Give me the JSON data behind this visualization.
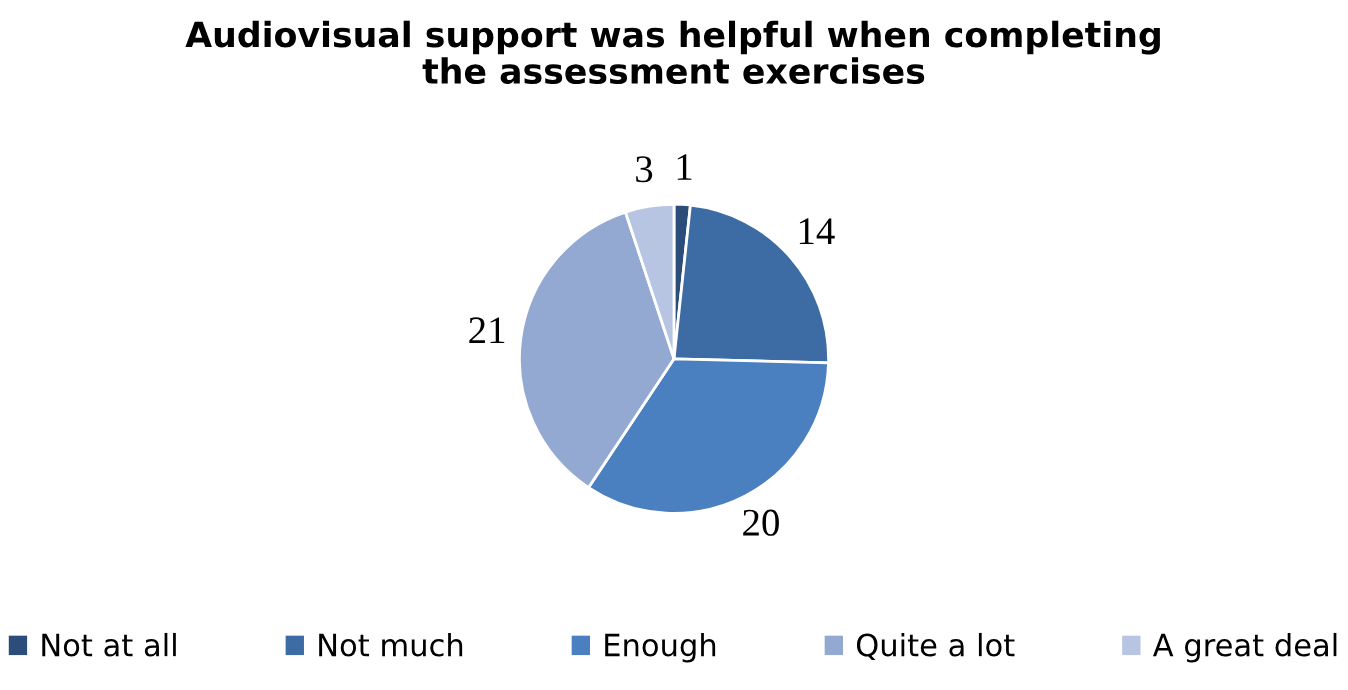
{
  "chart_data": {
    "type": "pie",
    "title": "Audiovisual support was helpful when completing\nthe assessment exercises",
    "categories": [
      "Not at all",
      "Not much",
      "Enough",
      "Quite a lot",
      "A great deal"
    ],
    "values": [
      1,
      14,
      20,
      21,
      3
    ],
    "colors": [
      "#2c4d7a",
      "#3d6ba3",
      "#4a7fc0",
      "#93a9d2",
      "#b8c5e2"
    ],
    "data_labels": true,
    "legend": "bottom"
  }
}
